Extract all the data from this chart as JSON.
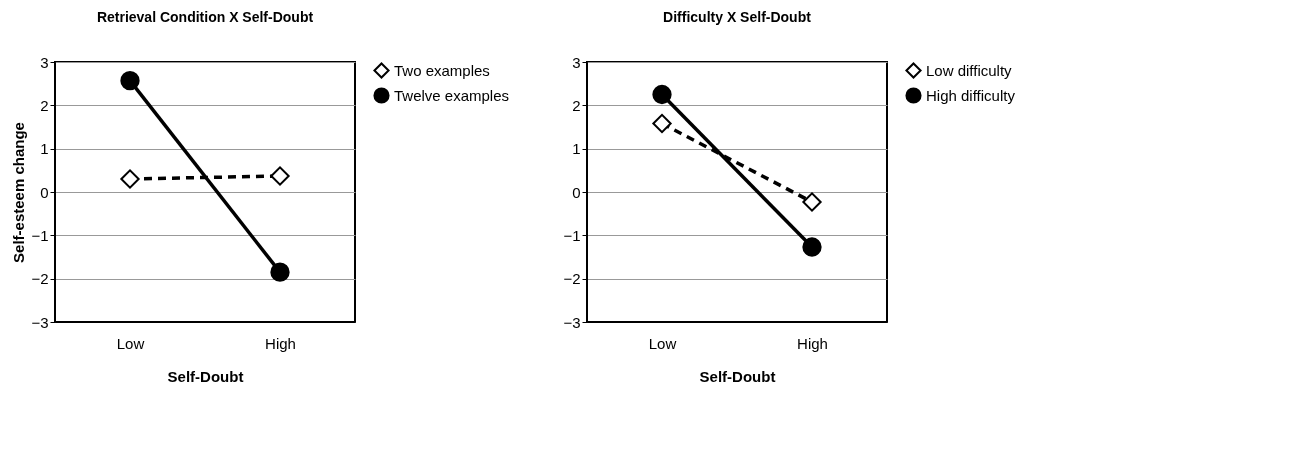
{
  "chart_data": [
    {
      "type": "line",
      "title": "Retrieval Condition X Self-Doubt",
      "xlabel": "Self-Doubt",
      "ylabel": "Self-esteem change",
      "categories": [
        "Low",
        "High"
      ],
      "ylim": [
        -3,
        3
      ],
      "yticks": [
        -3,
        -2,
        -1,
        0,
        1,
        2,
        3
      ],
      "grid": "y",
      "legend": "right",
      "series": [
        {
          "name": "Two examples",
          "color": "#000000",
          "values": [
            0.3,
            0.37
          ],
          "marker": "diamond",
          "line_style": "dashed"
        },
        {
          "name": "Twelve examples",
          "color": "#000000",
          "values": [
            2.57,
            -1.85
          ],
          "marker": "circle",
          "line_style": "solid"
        }
      ]
    },
    {
      "type": "line",
      "title": "Difficulty X Self-Doubt",
      "xlabel": "Self-Doubt",
      "categories": [
        "Low",
        "High"
      ],
      "ylim": [
        -3,
        3
      ],
      "yticks": [
        -3,
        -2,
        -1,
        0,
        1,
        2,
        3
      ],
      "grid": "y",
      "legend": "right",
      "series": [
        {
          "name": "Low difficulty",
          "color": "#000000",
          "values": [
            1.58,
            -0.23
          ],
          "marker": "diamond",
          "line_style": "dashed"
        },
        {
          "name": "High difficulty",
          "color": "#000000",
          "values": [
            2.25,
            -1.27
          ],
          "marker": "circle",
          "line_style": "solid"
        }
      ]
    }
  ]
}
